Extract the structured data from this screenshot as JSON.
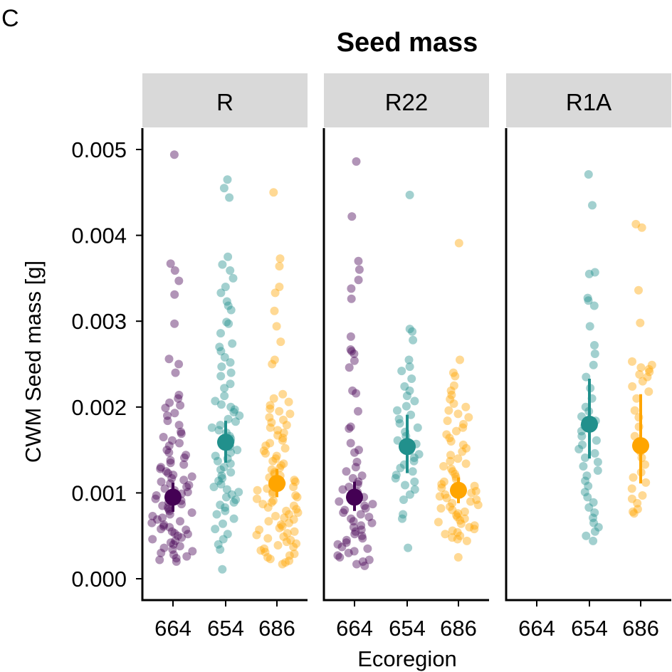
{
  "panel_letter": "C",
  "chart_data": {
    "type": "scatter",
    "title": "Seed mass",
    "xlabel": "Ecoregion",
    "ylabel": "CWM Seed mass [g]",
    "ylim": [
      -0.00025,
      0.0052
    ],
    "yticks": [
      "0.000",
      "0.001",
      "0.002",
      "0.003",
      "0.004",
      "0.005"
    ],
    "grid": false,
    "legend": "none",
    "categories": [
      "664",
      "654",
      "686"
    ],
    "colors": {
      "664": "#440154",
      "654": "#21908c",
      "686": "#ffa500"
    },
    "facets": [
      {
        "name": "R",
        "groups": [
          {
            "ecoregion": "664",
            "mean": 0.00095,
            "ci": [
              0.00078,
              0.00112
            ],
            "values": [
              0.00494,
              0.00367,
              0.00359,
              0.00347,
              0.00331,
              0.00297,
              0.00256,
              0.0025,
              0.0024,
              0.00214,
              0.0021,
              0.00205,
              0.00202,
              0.00199,
              0.00193,
              0.0019,
              0.00184,
              0.00179,
              0.00171,
              0.00169,
              0.00165,
              0.00161,
              0.00158,
              0.00155,
              0.0015,
              0.00147,
              0.00144,
              0.00141,
              0.00138,
              0.00135,
              0.00133,
              0.0013,
              0.00128,
              0.00125,
              0.00123,
              0.00121,
              0.00119,
              0.00117,
              0.00115,
              0.00113,
              0.00111,
              0.00109,
              0.00107,
              0.00105,
              0.00103,
              0.00101,
              0.00099,
              0.00097,
              0.00095,
              0.00093,
              0.00091,
              0.00089,
              0.00087,
              0.00085,
              0.00083,
              0.00081,
              0.00079,
              0.00077,
              0.00075,
              0.00073,
              0.00071,
              0.00069,
              0.00067,
              0.00065,
              0.00063,
              0.00061,
              0.0006,
              0.00058,
              0.00057,
              0.00055,
              0.00053,
              0.00052,
              0.0005,
              0.00048,
              0.00046,
              0.00044,
              0.00042,
              0.0004,
              0.00038,
              0.00036,
              0.00034,
              0.00032,
              0.0003,
              0.00028,
              0.00026,
              0.00024,
              0.00022,
              0.0002
            ]
          },
          {
            "ecoregion": "654",
            "mean": 0.00159,
            "ci": [
              0.00135,
              0.00184
            ],
            "values": [
              0.00465,
              0.00455,
              0.00444,
              0.00375,
              0.00366,
              0.00359,
              0.0035,
              0.0034,
              0.00333,
              0.00323,
              0.00318,
              0.00313,
              0.00299,
              0.00297,
              0.00286,
              0.00274,
              0.0027,
              0.00265,
              0.00258,
              0.00252,
              0.00247,
              0.0024,
              0.00236,
              0.00227,
              0.00222,
              0.00213,
              0.00207,
              0.00203,
              0.002,
              0.00197,
              0.00194,
              0.0019,
              0.00186,
              0.00183,
              0.00179,
              0.00176,
              0.00173,
              0.0017,
              0.00166,
              0.00163,
              0.0016,
              0.00157,
              0.00154,
              0.0015,
              0.00147,
              0.00143,
              0.0014,
              0.00137,
              0.00134,
              0.0013,
              0.00127,
              0.00124,
              0.0012,
              0.00117,
              0.00114,
              0.0011,
              0.00107,
              0.00104,
              0.00101,
              0.00098,
              0.00095,
              0.00092,
              0.00089,
              0.00086,
              0.00083,
              0.00079,
              0.00075,
              0.0007,
              0.00064,
              0.00058,
              0.00052,
              0.00046,
              0.0004,
              0.00034,
              0.00011
            ]
          },
          {
            "ecoregion": "686",
            "mean": 0.00111,
            "ci": [
              0.00095,
              0.00128
            ],
            "values": [
              0.0045,
              0.00373,
              0.00364,
              0.0034,
              0.00333,
              0.00312,
              0.00294,
              0.00276,
              0.00255,
              0.0025,
              0.00215,
              0.0021,
              0.00206,
              0.00202,
              0.00198,
              0.00195,
              0.00192,
              0.00188,
              0.00185,
              0.00182,
              0.00179,
              0.00176,
              0.00173,
              0.0017,
              0.00167,
              0.00164,
              0.00161,
              0.00158,
              0.00155,
              0.00152,
              0.00149,
              0.00146,
              0.00143,
              0.0014,
              0.00137,
              0.00134,
              0.00132,
              0.00129,
              0.00127,
              0.00124,
              0.00122,
              0.0012,
              0.00118,
              0.00115,
              0.00113,
              0.00111,
              0.00109,
              0.00107,
              0.00105,
              0.00103,
              0.00101,
              0.00099,
              0.00097,
              0.00095,
              0.00093,
              0.00091,
              0.00089,
              0.00087,
              0.00085,
              0.00083,
              0.00081,
              0.00079,
              0.00077,
              0.00075,
              0.00073,
              0.00071,
              0.00069,
              0.00067,
              0.00065,
              0.00063,
              0.00061,
              0.00059,
              0.00057,
              0.00055,
              0.00053,
              0.00051,
              0.00049,
              0.00047,
              0.00045,
              0.00043,
              0.00041,
              0.00039,
              0.00037,
              0.00035,
              0.00033,
              0.00031,
              0.00029,
              0.00027,
              0.00025,
              0.00023,
              0.00021,
              0.00019,
              0.00017
            ]
          }
        ]
      },
      {
        "name": "R22",
        "groups": [
          {
            "ecoregion": "664",
            "mean": 0.00095,
            "ci": [
              0.00079,
              0.00113
            ],
            "values": [
              0.00486,
              0.00422,
              0.0037,
              0.0036,
              0.00348,
              0.00338,
              0.00326,
              0.00282,
              0.00267,
              0.00265,
              0.00262,
              0.00254,
              0.00246,
              0.00219,
              0.00216,
              0.00195,
              0.00177,
              0.00175,
              0.00158,
              0.0015,
              0.00147,
              0.00136,
              0.0013,
              0.00125,
              0.0012,
              0.00117,
              0.00113,
              0.0011,
              0.00107,
              0.00104,
              0.00101,
              0.00098,
              0.00095,
              0.00092,
              0.0009,
              0.00087,
              0.00085,
              0.00082,
              0.0008,
              0.00077,
              0.00075,
              0.00072,
              0.0007,
              0.00067,
              0.00065,
              0.00062,
              0.0006,
              0.00057,
              0.00055,
              0.00052,
              0.0005,
              0.00047,
              0.00045,
              0.00042,
              0.0004,
              0.00037,
              0.00035,
              0.00032,
              0.0003,
              0.00027,
              0.00025,
              0.00022,
              0.0002,
              0.00017,
              0.00015
            ]
          },
          {
            "ecoregion": "654",
            "mean": 0.00154,
            "ci": [
              0.00123,
              0.00191
            ],
            "values": [
              0.00447,
              0.00291,
              0.00288,
              0.00278,
              0.00255,
              0.00247,
              0.00242,
              0.00233,
              0.00224,
              0.00219,
              0.00213,
              0.00207,
              0.00201,
              0.00196,
              0.00191,
              0.00186,
              0.00181,
              0.00176,
              0.00171,
              0.00166,
              0.00161,
              0.00157,
              0.00153,
              0.00149,
              0.00145,
              0.00141,
              0.00137,
              0.00133,
              0.00129,
              0.00125,
              0.00121,
              0.00117,
              0.00113,
              0.00109,
              0.00104,
              0.00098,
              0.00092,
              0.00075,
              0.0007,
              0.00036
            ]
          },
          {
            "ecoregion": "686",
            "mean": 0.00103,
            "ci": [
              0.00088,
              0.00118
            ],
            "values": [
              0.00391,
              0.00255,
              0.0024,
              0.00236,
              0.00225,
              0.00219,
              0.00214,
              0.00209,
              0.00204,
              0.002,
              0.00196,
              0.00192,
              0.00188,
              0.00184,
              0.0018,
              0.00176,
              0.00172,
              0.00168,
              0.00164,
              0.0016,
              0.00156,
              0.00152,
              0.00148,
              0.00144,
              0.0014,
              0.00137,
              0.00134,
              0.00131,
              0.00128,
              0.00125,
              0.00122,
              0.00119,
              0.00116,
              0.00113,
              0.0011,
              0.00108,
              0.00106,
              0.00104,
              0.00102,
              0.001,
              0.00098,
              0.00096,
              0.00094,
              0.00092,
              0.0009,
              0.00088,
              0.00086,
              0.00084,
              0.00082,
              0.0008,
              0.00078,
              0.00076,
              0.00074,
              0.00072,
              0.0007,
              0.00068,
              0.00066,
              0.00064,
              0.00062,
              0.0006,
              0.00058,
              0.00056,
              0.00054,
              0.00052,
              0.0005,
              0.00048,
              0.00046,
              0.00044,
              0.00025
            ]
          }
        ]
      },
      {
        "name": "R1A",
        "groups": [
          {
            "ecoregion": "664",
            "mean": null,
            "ci": null,
            "values": []
          },
          {
            "ecoregion": "654",
            "mean": 0.0018,
            "ci": [
              0.0014,
              0.00233
            ],
            "values": [
              0.00471,
              0.00435,
              0.00357,
              0.00355,
              0.00327,
              0.00324,
              0.00318,
              0.00294,
              0.00272,
              0.00262,
              0.00249,
              0.00235,
              0.00222,
              0.0021,
              0.002,
              0.00195,
              0.00189,
              0.00184,
              0.00178,
              0.00172,
              0.00166,
              0.00161,
              0.00156,
              0.00151,
              0.00146,
              0.00141,
              0.00136,
              0.00131,
              0.00126,
              0.0012,
              0.00114,
              0.00108,
              0.00101,
              0.00095,
              0.00089,
              0.00083,
              0.00077,
              0.00071,
              0.00065,
              0.0006,
              0.00055,
              0.0005,
              0.00044
            ]
          },
          {
            "ecoregion": "686",
            "mean": 0.00155,
            "ci": [
              0.00111,
              0.00215
            ],
            "values": [
              0.00413,
              0.00409,
              0.00336,
              0.00298,
              0.00253,
              0.00249,
              0.00246,
              0.00244,
              0.00241,
              0.00238,
              0.00235,
              0.0023,
              0.00224,
              0.00218,
              0.0021,
              0.00196,
              0.00188,
              0.00177,
              0.00166,
              0.0016,
              0.00148,
              0.00141,
              0.00133,
              0.00124,
              0.00118,
              0.00112,
              0.00105,
              0.00097,
              0.00093,
              0.00088,
              0.00081,
              0.00078,
              0.00076
            ]
          }
        ]
      }
    ]
  }
}
